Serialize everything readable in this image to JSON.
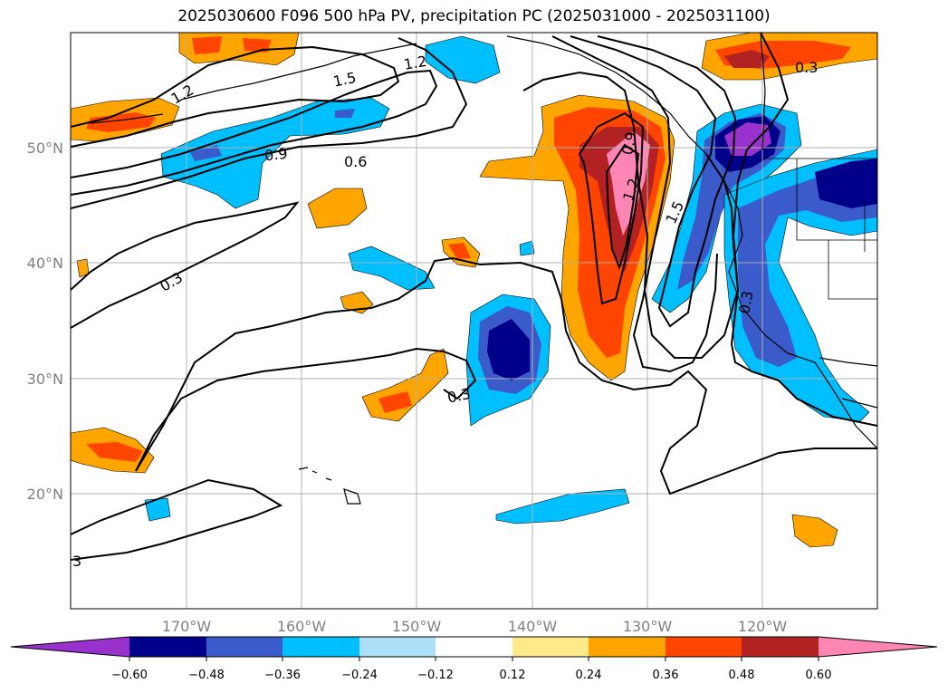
{
  "title": "2025030600 F096 500 hPa PV, precipitation PC (2025031000 - 2025031100)",
  "map": {
    "lon_ticks": [
      "170°W",
      "160°W",
      "150°W",
      "140°W",
      "130°W",
      "120°W"
    ],
    "lat_ticks": [
      "50°N",
      "40°N",
      "30°N",
      "20°N"
    ],
    "gridlines": true,
    "grid_color": "#b0b0b0",
    "contour_color": "#000000",
    "contour_labels": [
      "1.2",
      "1.5",
      "1.2",
      "0.9",
      "0.6",
      "0.3",
      "0.3",
      "0.9",
      "1.2",
      "1.5",
      "0.3",
      "0.3",
      "3"
    ]
  },
  "colorbar": {
    "ticks": [
      "−0.60",
      "−0.48",
      "−0.36",
      "−0.24",
      "−0.12",
      "0.12",
      "0.24",
      "0.36",
      "0.48",
      "0.60"
    ],
    "colors": [
      "#9932CC",
      "#00008B",
      "#3A5BC9",
      "#00BFFF",
      "#ADDFF9",
      "#FFFFFF",
      "#FFEA8A",
      "#FFA500",
      "#FF4500",
      "#B22222",
      "#FF85B4"
    ],
    "extend": "both"
  },
  "chart_data": {
    "type": "heatmap",
    "title": "2025030600 F096 500 hPa PV, precipitation PC (2025031000 - 2025031100)",
    "xlabel": "",
    "ylabel": "",
    "x_range": [
      "180°W",
      "110°W"
    ],
    "y_range": [
      "10°N",
      "60°N"
    ],
    "color_levels": [
      -0.6,
      -0.48,
      -0.36,
      -0.24,
      -0.12,
      0.12,
      0.24,
      0.36,
      0.48,
      0.6
    ],
    "contour_levels": [
      0.3,
      0.6,
      0.9,
      1.2,
      1.5
    ]
  }
}
